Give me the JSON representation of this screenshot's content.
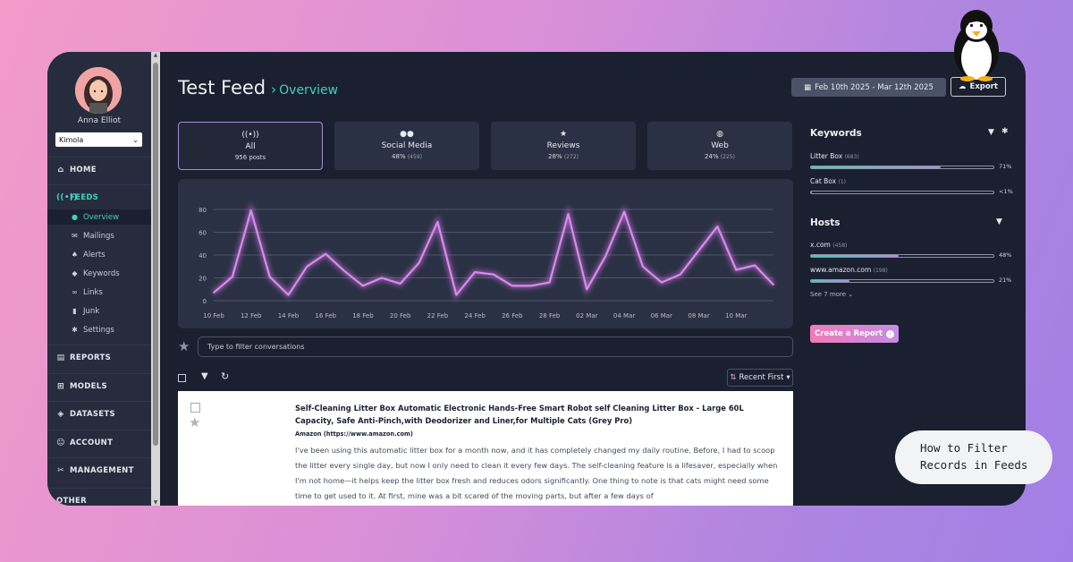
{
  "user": {
    "name": "Anna Elliot",
    "org": "Kimola"
  },
  "nav": {
    "home": "HOME",
    "feeds": "FEEDS",
    "feed_items": [
      {
        "label": "Overview",
        "icon": "chat-icon"
      },
      {
        "label": "Mailings",
        "icon": "mail-icon"
      },
      {
        "label": "Alerts",
        "icon": "bell-icon"
      },
      {
        "label": "Keywords",
        "icon": "tag-icon"
      },
      {
        "label": "Links",
        "icon": "link-icon"
      },
      {
        "label": "Junk",
        "icon": "trash-icon"
      },
      {
        "label": "Settings",
        "icon": "gear-icon"
      }
    ],
    "reports": "REPORTS",
    "models": "MODELS",
    "datasets": "DATASETS",
    "account": "ACCOUNT",
    "management": "MANAGEMENT",
    "other": "OTHER"
  },
  "header": {
    "title": "Test Feed",
    "breadcrumb": "Overview",
    "date_range": "Feb 10th 2025 - Mar 12th 2025",
    "export": "Export"
  },
  "stats": [
    {
      "label": "All",
      "value": "956 posts",
      "count": ""
    },
    {
      "label": "Social Media",
      "value": "48%",
      "count": "(459)"
    },
    {
      "label": "Reviews",
      "value": "28%",
      "count": "(272)"
    },
    {
      "label": "Web",
      "value": "24%",
      "count": "(225)"
    }
  ],
  "chart_data": {
    "type": "line",
    "title": "",
    "xlabel": "",
    "ylabel": "",
    "ylim": [
      0,
      80
    ],
    "yticks": [
      0,
      20,
      40,
      60,
      80
    ],
    "x_tick_labels": [
      "10 Feb",
      "12 Feb",
      "14 Feb",
      "16 Feb",
      "18 Feb",
      "20 Feb",
      "22 Feb",
      "24 Feb",
      "26 Feb",
      "28 Feb",
      "02 Mar",
      "04 Mar",
      "06 Mar",
      "08 Mar",
      "10 Mar"
    ],
    "x": [
      "10 Feb",
      "11 Feb",
      "12 Feb",
      "13 Feb",
      "14 Feb",
      "15 Feb",
      "16 Feb",
      "17 Feb",
      "18 Feb",
      "19 Feb",
      "20 Feb",
      "21 Feb",
      "22 Feb",
      "23 Feb",
      "24 Feb",
      "25 Feb",
      "26 Feb",
      "27 Feb",
      "28 Feb",
      "01 Mar",
      "02 Mar",
      "03 Mar",
      "04 Mar",
      "05 Mar",
      "06 Mar",
      "07 Mar",
      "08 Mar",
      "09 Mar",
      "10 Mar",
      "11 Mar",
      "12 Mar"
    ],
    "series": [
      {
        "values": [
          7,
          21,
          79,
          21,
          5,
          30,
          41,
          26,
          13,
          20,
          15,
          33,
          69,
          5,
          25,
          23,
          13,
          13,
          16,
          76,
          10,
          39,
          78,
          30,
          16,
          23,
          44,
          65,
          27,
          31,
          14
        ]
      }
    ],
    "grid": true,
    "line_color": "#d98be8"
  },
  "filter": {
    "placeholder": "Type to filter conversations"
  },
  "toolbar": {
    "sort": "Recent First"
  },
  "post": {
    "title": "Self-Cleaning Litter Box Automatic Electronic Hands-Free Smart Robot self Cleaning Litter Box - Large 60L Capacity, Safe Anti-Pinch,with Deodorizer and Liner,for Multiple Cats (Grey Pro)",
    "source": "Amazon (https://www.amazon.com)",
    "body": "I've been using this automatic litter box for a month now, and it has completely changed my daily routine. Before, I had to scoop the litter every single day, but now I only need to clean it every few days. The self-cleaning feature is a lifesaver, especially when I'm not home—it helps keep the litter box fresh and reduces odors significantly. One thing to note is that cats might need some time to get used to it. At first, mine was a bit scared of the moving parts, but after a few days of"
  },
  "keywords": {
    "title": "Keywords",
    "items": [
      {
        "name": "Litter Box",
        "count": "(683)",
        "pct": "71%",
        "fraction": 0.71
      },
      {
        "name": "Cat Box",
        "count": "(1)",
        "pct": "<1%",
        "fraction": 0.003
      }
    ]
  },
  "hosts": {
    "title": "Hosts",
    "items": [
      {
        "name": "x.com",
        "count": "(458)",
        "pct": "48%",
        "fraction": 0.48
      },
      {
        "name": "www.amazon.com",
        "count": "(198)",
        "pct": "21%",
        "fraction": 0.21
      }
    ],
    "see_more": "See 7 more"
  },
  "create_report": "Create a Report",
  "badge": {
    "line1": "How to Filter",
    "line2": "Records in Feeds"
  }
}
